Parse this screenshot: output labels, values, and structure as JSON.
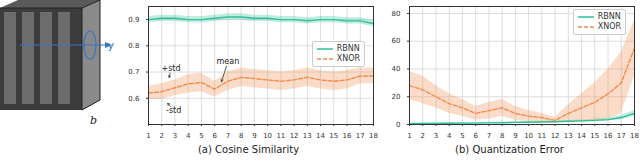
{
  "diagram": {
    "labels": [
      "y",
      "b"
    ]
  },
  "chart_data": [
    {
      "type": "line",
      "title": "(a) Cosine Similarity",
      "x": [
        1,
        2,
        3,
        4,
        5,
        6,
        7,
        8,
        9,
        10,
        11,
        12,
        13,
        14,
        15,
        16,
        17,
        18
      ],
      "xlim": [
        1,
        18
      ],
      "xticks": [
        1,
        2,
        3,
        4,
        5,
        6,
        7,
        8,
        9,
        10,
        11,
        12,
        13,
        14,
        15,
        16,
        17,
        18
      ],
      "ylim": [
        0.5,
        0.95
      ],
      "yticks": [
        0.6,
        0.7,
        0.8,
        0.9
      ],
      "grid": true,
      "legend": "right",
      "series": [
        {
          "name": "RBNN",
          "color": "#2fbf9a",
          "line_style": "solid",
          "values": [
            0.9,
            0.905,
            0.905,
            0.9,
            0.9,
            0.905,
            0.91,
            0.91,
            0.905,
            0.905,
            0.9,
            0.9,
            0.895,
            0.9,
            0.9,
            0.895,
            0.895,
            0.885
          ],
          "std": [
            0.012,
            0.012,
            0.012,
            0.012,
            0.012,
            0.012,
            0.012,
            0.012,
            0.012,
            0.012,
            0.012,
            0.012,
            0.012,
            0.012,
            0.012,
            0.012,
            0.012,
            0.012
          ]
        },
        {
          "name": "XNOR",
          "color": "#f28b4c",
          "line_style": "dashed",
          "values": [
            0.62,
            0.625,
            0.64,
            0.655,
            0.66,
            0.635,
            0.665,
            0.68,
            0.675,
            0.67,
            0.665,
            0.67,
            0.68,
            0.67,
            0.665,
            0.67,
            0.685,
            0.685
          ],
          "std": [
            0.025,
            0.03,
            0.03,
            0.035,
            0.035,
            0.03,
            0.035,
            0.035,
            0.035,
            0.035,
            0.035,
            0.035,
            0.035,
            0.035,
            0.035,
            0.035,
            0.03,
            0.03
          ]
        }
      ],
      "annotations": [
        {
          "text": "+std",
          "x": 2.7,
          "y": 0.715,
          "target_x": 2.5,
          "target_y": 0.66
        },
        {
          "text": "mean",
          "x": 7,
          "y": 0.74,
          "target_x": 6.4,
          "target_y": 0.645
        },
        {
          "text": "-std",
          "x": 2.9,
          "y": 0.555,
          "target_x": 2.2,
          "target_y": 0.595
        }
      ]
    },
    {
      "type": "line",
      "title": "(b) Quantization Error",
      "x": [
        1,
        2,
        3,
        4,
        5,
        6,
        7,
        8,
        9,
        10,
        11,
        12,
        13,
        14,
        15,
        16,
        17,
        18
      ],
      "xlim": [
        1,
        18
      ],
      "xticks": [
        1,
        2,
        3,
        4,
        5,
        6,
        7,
        8,
        9,
        10,
        11,
        12,
        13,
        14,
        15,
        16,
        17,
        18
      ],
      "ylim": [
        0,
        85
      ],
      "yticks": [
        0,
        20,
        40,
        60,
        80
      ],
      "grid": true,
      "legend": "upper right",
      "series": [
        {
          "name": "RBNN",
          "color": "#2fbf9a",
          "line_style": "solid",
          "values": [
            0.5,
            0.7,
            0.8,
            0.9,
            1,
            1,
            1.2,
            1.3,
            1.5,
            1.6,
            1.8,
            2,
            2.3,
            2.6,
            3,
            3.5,
            5,
            8
          ],
          "std": [
            0.3,
            0.3,
            0.3,
            0.3,
            0.4,
            0.4,
            0.4,
            0.4,
            0.5,
            0.5,
            0.5,
            0.6,
            0.6,
            0.7,
            0.8,
            1,
            1.5,
            2
          ]
        },
        {
          "name": "XNOR",
          "color": "#f28b4c",
          "line_style": "dashed",
          "values": [
            28,
            25,
            20,
            15,
            12,
            8,
            10,
            12,
            8,
            6,
            5,
            3,
            8,
            12,
            16,
            22,
            30,
            55
          ],
          "std": [
            10,
            10,
            8,
            7,
            6,
            5,
            6,
            6,
            5,
            4,
            3,
            2,
            6,
            10,
            14,
            18,
            22,
            20
          ]
        }
      ]
    }
  ]
}
